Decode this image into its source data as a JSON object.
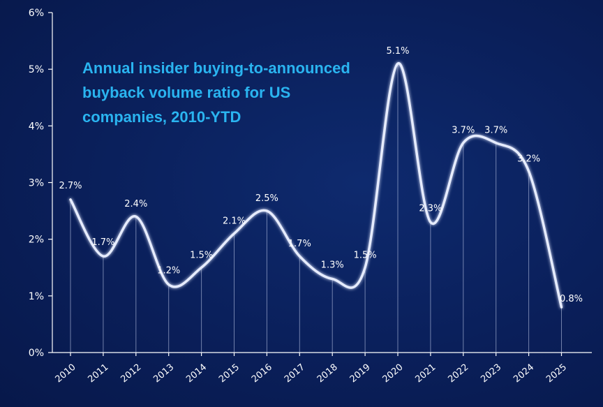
{
  "chart_data": {
    "type": "line",
    "title": "Annual insider buying-to-announced buyback volume ratio for US companies, 2010-YTD",
    "x": [
      "2010",
      "2011",
      "2012",
      "2013",
      "2014",
      "2015",
      "2016",
      "2017",
      "2018",
      "2019",
      "2020",
      "2021",
      "2022",
      "2023",
      "2024",
      "2025"
    ],
    "series": [
      {
        "values": [
          2.7,
          1.7,
          2.4,
          1.2,
          1.5,
          2.1,
          2.5,
          1.7,
          1.3,
          1.5,
          5.1,
          2.3,
          3.7,
          3.7,
          3.2,
          0.8
        ]
      }
    ],
    "data_labels": [
      "2.7%",
      "1.7%",
      "2.4%",
      "1.2%",
      "1.5%",
      "2.1%",
      "2.5%",
      "1.7%",
      "1.3%",
      "1.5%",
      "5.1%",
      "2.3%",
      "3.7%",
      "3.7%",
      "3.2%",
      "0.8%"
    ],
    "y_ticks": [
      "0%",
      "1%",
      "2%",
      "3%",
      "4%",
      "5%",
      "6%"
    ],
    "ylim": [
      0,
      6
    ],
    "grid": false,
    "colors": {
      "background": "#0a1f5a",
      "line": "#e6ecff",
      "title": "#2ab4f0",
      "text": "#ffffff"
    }
  }
}
